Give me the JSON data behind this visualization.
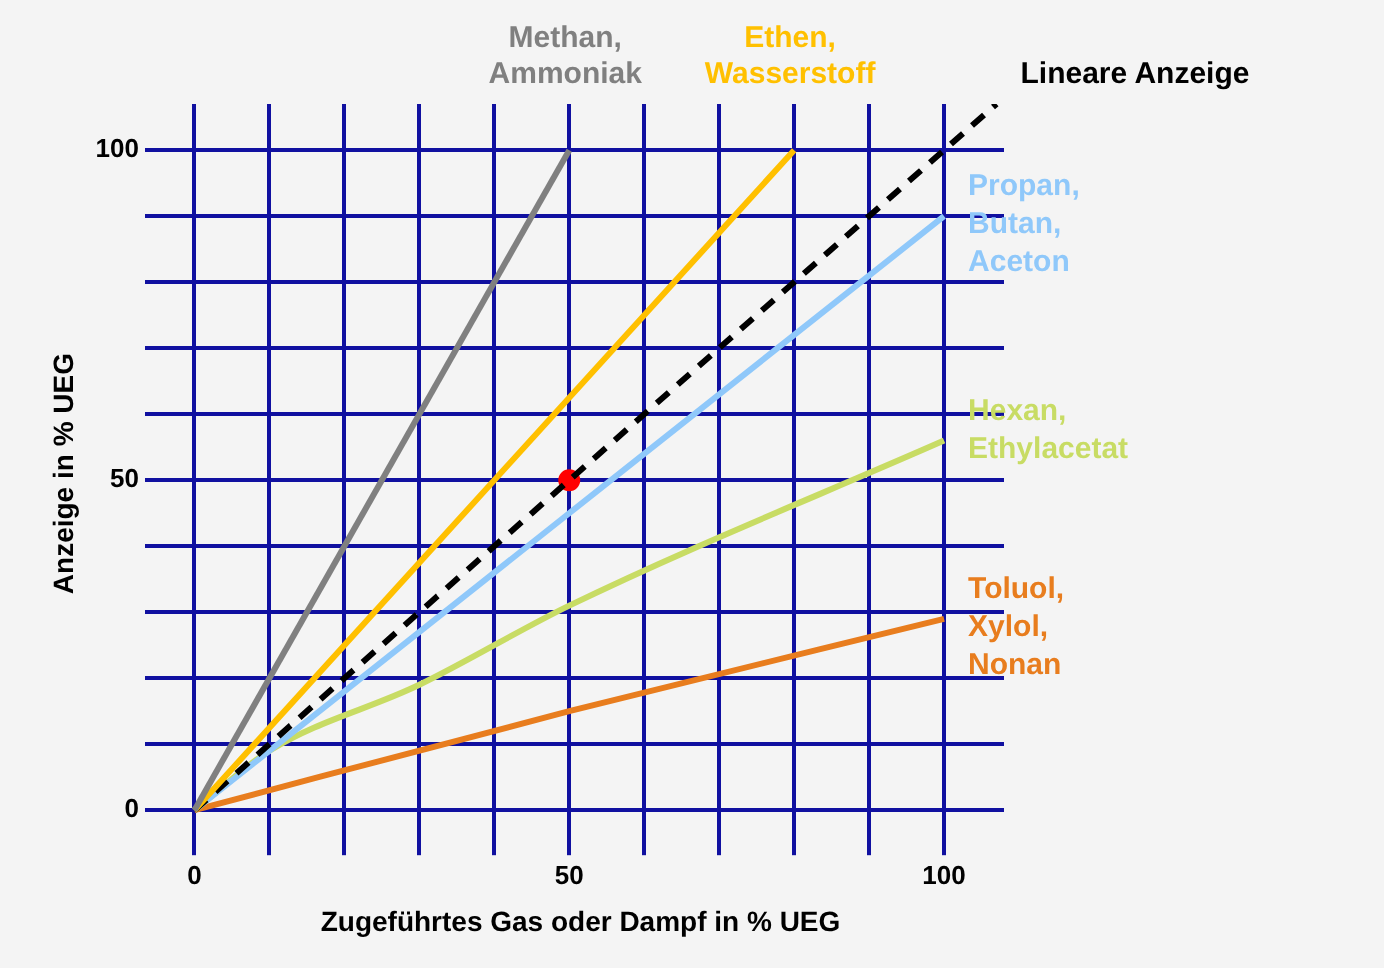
{
  "chart_data": {
    "type": "line",
    "xlabel": "Zugeführtes Gas oder Dampf in % UEG",
    "ylabel": "Anzeige in % UEG",
    "xlim": [
      -5,
      108
    ],
    "ylim": [
      -5,
      107
    ],
    "xticks": [
      0,
      {
        "value": 10,
        "label": null
      },
      {
        "value": 20,
        "label": null
      },
      {
        "value": 30,
        "label": null
      },
      {
        "value": 40,
        "label": null
      },
      50,
      {
        "value": 60,
        "label": null
      },
      {
        "value": 70,
        "label": null
      },
      {
        "value": 80,
        "label": null
      },
      {
        "value": 90,
        "label": null
      },
      100
    ],
    "yticks": [
      0,
      {
        "value": 10,
        "label": null
      },
      {
        "value": 20,
        "label": null
      },
      {
        "value": 30,
        "label": null
      },
      {
        "value": 40,
        "label": null
      },
      50,
      {
        "value": 60,
        "label": null
      },
      {
        "value": 70,
        "label": null
      },
      {
        "value": 80,
        "label": null
      },
      {
        "value": 90,
        "label": null
      },
      100
    ],
    "grid": true,
    "marker": "none",
    "legend": false,
    "series": [
      {
        "name": "Methan, Ammoniak",
        "color": "#808080",
        "x": [
          0,
          50
        ],
        "values": [
          0,
          100
        ]
      },
      {
        "name": "Ethen, Wasserstoff",
        "color": "#ffc000",
        "x": [
          0,
          80
        ],
        "values": [
          0,
          100
        ]
      },
      {
        "name": "Lineare Anzeige",
        "color": "#000000",
        "line_style": "dashed",
        "x": [
          0,
          107
        ],
        "values": [
          0,
          107
        ]
      },
      {
        "name": "Propan, Butan, Aceton",
        "color": "#8fc8fa",
        "x": [
          0,
          100
        ],
        "values": [
          0,
          90
        ]
      },
      {
        "name": "Hexan, Ethylacetat",
        "color": "#c8dc64",
        "x": [
          0,
          10,
          30,
          50,
          100
        ],
        "values": [
          0,
          9,
          19,
          31,
          56
        ]
      },
      {
        "name": "Toluol, Xylol, Nonan",
        "color": "#e87d1e",
        "x": [
          0,
          50,
          100
        ],
        "values": [
          0,
          15,
          29
        ]
      },
      {
        "type": "scatter",
        "marker": "circle",
        "color": "#ff0000",
        "x": [
          50
        ],
        "values": [
          50
        ]
      }
    ]
  }
}
